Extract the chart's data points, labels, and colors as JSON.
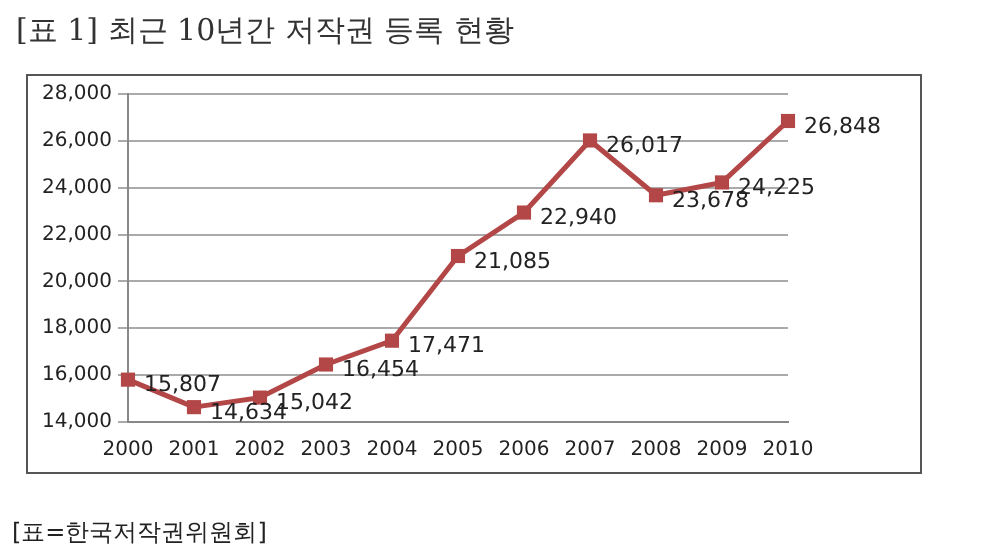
{
  "chart_data": {
    "type": "line",
    "title": "[표 1] 최근 10년간 저작권 등록 현황",
    "categories": [
      "2000",
      "2001",
      "2002",
      "2003",
      "2004",
      "2005",
      "2006",
      "2007",
      "2008",
      "2009",
      "2010"
    ],
    "series": [
      {
        "color": "#b34747",
        "values": [
          15807,
          14634,
          15042,
          16454,
          17471,
          21085,
          22940,
          26017,
          23678,
          24225,
          26848
        ]
      }
    ],
    "value_labels": [
      "15,807",
      "14,634",
      "15,042",
      "16,454",
      "17,471",
      "21,085",
      "22,940",
      "26,017",
      "23,678",
      "24,225",
      "26,848"
    ],
    "ylim": [
      14000,
      28000
    ],
    "yticks": [
      {
        "value": 14000,
        "label": "14,000"
      },
      {
        "value": 16000,
        "label": "16,000"
      },
      {
        "value": 18000,
        "label": "18,000"
      },
      {
        "value": 20000,
        "label": "20,000"
      },
      {
        "value": 22000,
        "label": "22,000"
      },
      {
        "value": 24000,
        "label": "24,000"
      },
      {
        "value": 26000,
        "label": "26,000"
      },
      {
        "value": 28000,
        "label": "28,000"
      }
    ],
    "grid": "y",
    "legend": false,
    "marker": "square",
    "line_style": "solid",
    "annotations": [
      "[표=한국저작권위원회]"
    ]
  }
}
